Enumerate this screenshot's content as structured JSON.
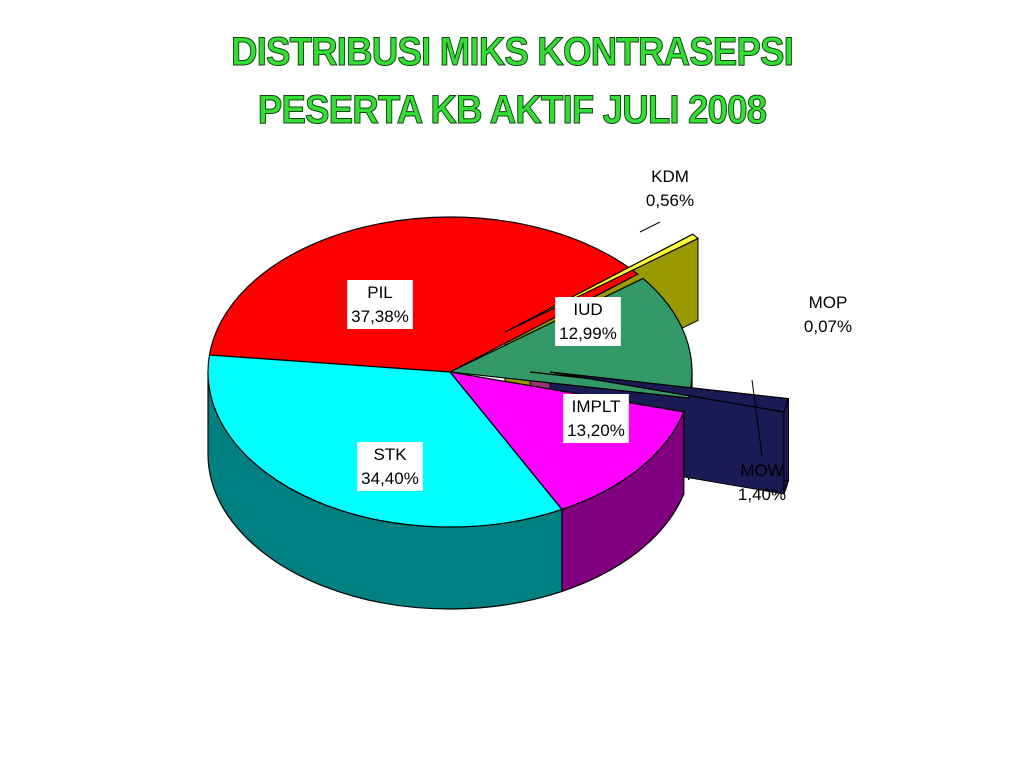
{
  "title_lines": [
    "DISTRIBUSI MIKS KONTRASEPSI",
    "PESERTA KB AKTIF   JULI 2008"
  ],
  "chart_data": {
    "type": "pie",
    "title": "DISTRIBUSI MIKS KONTRASEPSI PESERTA KB AKTIF   JULI 2008",
    "slices": [
      {
        "label": "PIL",
        "value_text": "37,38%",
        "value": 37.38,
        "color": "#ff0000",
        "side": "#880000"
      },
      {
        "label": "KDM",
        "value_text": "0,56%",
        "value": 0.56,
        "color": "#ffff33",
        "side": "#999900"
      },
      {
        "label": "IUD",
        "value_text": "12,99%",
        "value": 12.99,
        "color": "#339966",
        "side": "#1f5c3d"
      },
      {
        "label": "MOP",
        "value_text": "0,07%",
        "value": 0.07,
        "color": "#ff66cc",
        "side": "#993377"
      },
      {
        "label": "MOW",
        "value_text": "1,40%",
        "value": 1.4,
        "color": "#1a1a55",
        "side": "#1a1a55"
      },
      {
        "label": "IMPLT",
        "value_text": "13,20%",
        "value": 13.2,
        "color": "#ff00ff",
        "side": "#800080"
      },
      {
        "label": "STK",
        "value_text": "34,40%",
        "value": 34.4,
        "color": "#00ffff",
        "side": "#008080"
      }
    ]
  }
}
